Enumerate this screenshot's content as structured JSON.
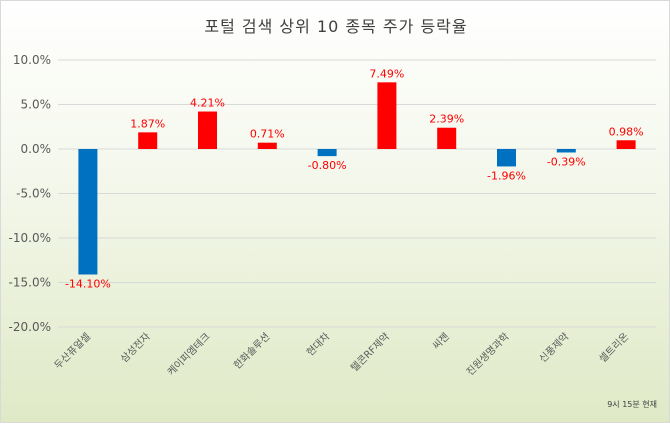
{
  "chart_data": {
    "type": "bar",
    "title": "포털 검색 상위 10 종목 주가 등락율",
    "categories": [
      "두산퓨얼셀",
      "삼성전자",
      "케이피엠테크",
      "한화솔루션",
      "현대차",
      "텔콘RF제약",
      "씨젠",
      "진원생명과학",
      "신풍제약",
      "셀트리온"
    ],
    "values": [
      -14.1,
      1.87,
      4.21,
      0.71,
      -0.8,
      7.49,
      2.39,
      -1.96,
      -0.39,
      0.98
    ],
    "data_labels": [
      "-14.10%",
      "1.87%",
      "4.21%",
      "0.71%",
      "-0.80%",
      "7.49%",
      "2.39%",
      "-1.96%",
      "-0.39%",
      "0.98%"
    ],
    "ylim": [
      -20,
      10
    ],
    "yticks": [
      10,
      5,
      0,
      -5,
      -10,
      -15,
      -20
    ],
    "ytick_labels": [
      "10.0%",
      "5.0%",
      "0.0%",
      "-5.0%",
      "-10.0%",
      "-15.0%",
      "-20.0%"
    ],
    "grid": true,
    "colors": {
      "positive": "#ff0000",
      "negative": "#0070c0",
      "label": "#ff0000"
    }
  },
  "footnote": "9시 15분 현재"
}
